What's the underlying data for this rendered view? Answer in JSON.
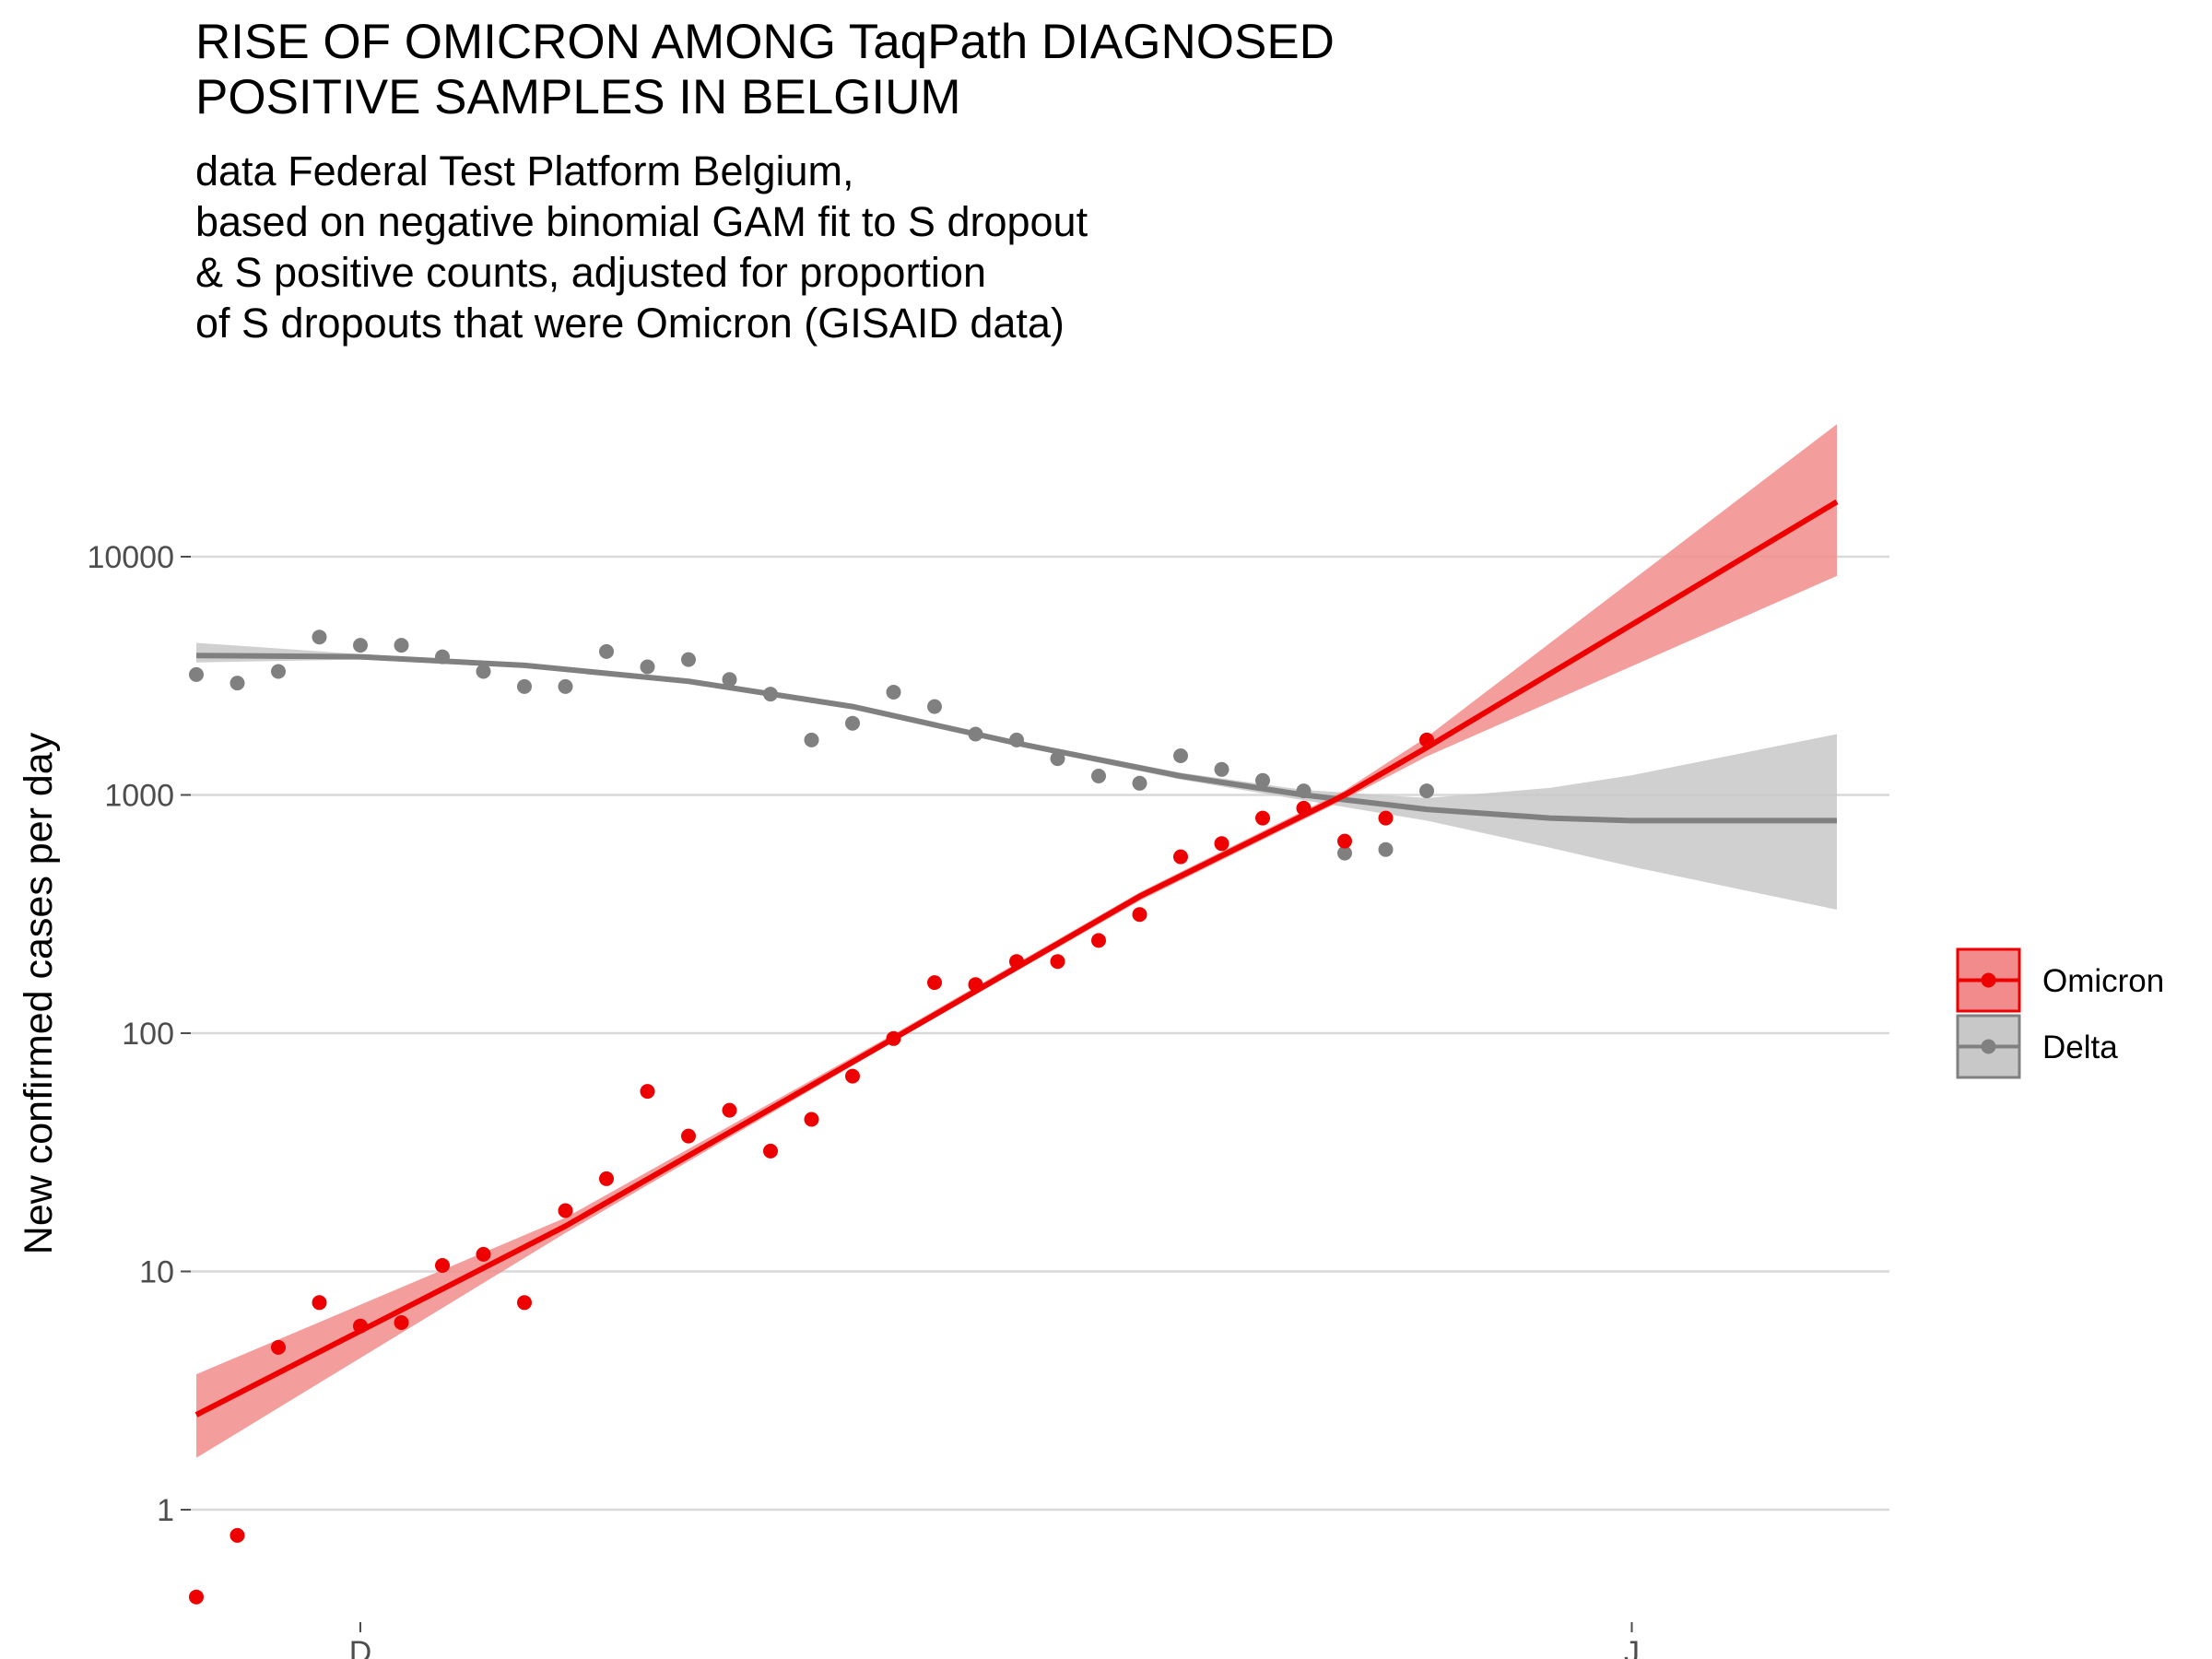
{
  "title_lines": [
    "RISE OF OMICRON AMONG TaqPath DIAGNOSED",
    "POSITIVE SAMPLES IN BELGIUM"
  ],
  "subtitle_lines": [
    "data Federal Test Platform Belgium,",
    "based on negative binomial GAM fit to S dropout",
    "& S positive counts, adjusted for proportion",
    "of S dropouts that were Omicron (GISAID data)"
  ],
  "chart_data": {
    "type": "scatter",
    "title": "RISE OF OMICRON AMONG TaqPath DIAGNOSED POSITIVE SAMPLES IN BELGIUM",
    "subtitle": "data Federal Test Platform Belgium, based on negative binomial GAM fit to S dropout & S positive counts, adjusted for proportion of S dropouts that were Omicron (GISAID data)",
    "xlabel": "",
    "ylabel": "New confirmed cases per day",
    "y_scale": "log10",
    "ylim": [
      0.4,
      40000
    ],
    "xlim": [
      "2021-11-26",
      "2022-01-06"
    ],
    "x_ticks": [
      {
        "date": "2021-12-01",
        "label": "D"
      },
      {
        "date": "2022-01-01",
        "label": "J"
      }
    ],
    "y_ticks": [
      {
        "value": 1,
        "label": "1"
      },
      {
        "value": 10,
        "label": "10"
      },
      {
        "value": 100,
        "label": "100"
      },
      {
        "value": 1000,
        "label": "1000"
      },
      {
        "value": 10000,
        "label": "10000"
      }
    ],
    "grid": "horizontal-major",
    "legend_position": "right",
    "series": [
      {
        "name": "Omicron",
        "color": "#ee0000",
        "ribbon_color": "#f28c8c",
        "points": [
          [
            "2021-11-27",
            0.43
          ],
          [
            "2021-11-28",
            0.78
          ],
          [
            "2021-11-29",
            4.8
          ],
          [
            "2021-11-30",
            7.4
          ],
          [
            "2021-12-01",
            5.9
          ],
          [
            "2021-12-02",
            6.1
          ],
          [
            "2021-12-03",
            10.6
          ],
          [
            "2021-12-04",
            11.8
          ],
          [
            "2021-12-05",
            7.4
          ],
          [
            "2021-12-06",
            18
          ],
          [
            "2021-12-07",
            24.5
          ],
          [
            "2021-12-08",
            57
          ],
          [
            "2021-12-09",
            37
          ],
          [
            "2021-12-10",
            47.5
          ],
          [
            "2021-12-11",
            32
          ],
          [
            "2021-12-12",
            43.5
          ],
          [
            "2021-12-13",
            66
          ],
          [
            "2021-12-14",
            95
          ],
          [
            "2021-12-15",
            163
          ],
          [
            "2021-12-16",
            160
          ],
          [
            "2021-12-17",
            200
          ],
          [
            "2021-12-18",
            200
          ],
          [
            "2021-12-19",
            245
          ],
          [
            "2021-12-20",
            315
          ],
          [
            "2021-12-21",
            550
          ],
          [
            "2021-12-22",
            625
          ],
          [
            "2021-12-23",
            800
          ],
          [
            "2021-12-24",
            880
          ],
          [
            "2021-12-25",
            640
          ],
          [
            "2021-12-26",
            800
          ],
          [
            "2021-12-27",
            1700
          ]
        ],
        "fit": [
          [
            "2021-11-27",
            2.5
          ],
          [
            "2021-12-06",
            15.5
          ],
          [
            "2021-12-14",
            95
          ],
          [
            "2021-12-20",
            375
          ],
          [
            "2021-12-25",
            1000
          ],
          [
            "2021-12-27",
            1580
          ],
          [
            "2022-01-06",
            17000
          ]
        ],
        "ribbon_lower": [
          [
            "2021-11-27",
            1.65
          ],
          [
            "2021-12-06",
            14.5
          ],
          [
            "2021-12-14",
            92
          ],
          [
            "2021-12-20",
            360
          ],
          [
            "2021-12-25",
            960
          ],
          [
            "2021-12-27",
            1450
          ],
          [
            "2022-01-06",
            8300
          ]
        ],
        "ribbon_upper": [
          [
            "2021-11-27",
            3.7
          ],
          [
            "2021-12-06",
            16.8
          ],
          [
            "2021-12-14",
            99
          ],
          [
            "2021-12-20",
            390
          ],
          [
            "2021-12-25",
            1045
          ],
          [
            "2021-12-27",
            1750
          ],
          [
            "2022-01-06",
            36000
          ]
        ]
      },
      {
        "name": "Delta",
        "color": "#808080",
        "ribbon_color": "#c8c8c8",
        "points": [
          [
            "2021-11-27",
            3200
          ],
          [
            "2021-11-28",
            2950
          ],
          [
            "2021-11-29",
            3300
          ],
          [
            "2021-11-30",
            4600
          ],
          [
            "2021-12-01",
            4250
          ],
          [
            "2021-12-02",
            4250
          ],
          [
            "2021-12-03",
            3800
          ],
          [
            "2021-12-04",
            3300
          ],
          [
            "2021-12-05",
            2850
          ],
          [
            "2021-12-06",
            2850
          ],
          [
            "2021-12-07",
            4000
          ],
          [
            "2021-12-08",
            3450
          ],
          [
            "2021-12-09",
            3700
          ],
          [
            "2021-12-10",
            3050
          ],
          [
            "2021-12-11",
            2650
          ],
          [
            "2021-12-12",
            1700
          ],
          [
            "2021-12-13",
            2000
          ],
          [
            "2021-12-14",
            2700
          ],
          [
            "2021-12-15",
            2350
          ],
          [
            "2021-12-16",
            1800
          ],
          [
            "2021-12-17",
            1700
          ],
          [
            "2021-12-18",
            1420
          ],
          [
            "2021-12-19",
            1200
          ],
          [
            "2021-12-20",
            1120
          ],
          [
            "2021-12-21",
            1460
          ],
          [
            "2021-12-22",
            1280
          ],
          [
            "2021-12-23",
            1150
          ],
          [
            "2021-12-24",
            1040
          ],
          [
            "2021-12-25",
            570
          ],
          [
            "2021-12-26",
            590
          ],
          [
            "2021-12-27",
            1040
          ]
        ],
        "fit": [
          [
            "2021-11-27",
            3850
          ],
          [
            "2021-12-01",
            3800
          ],
          [
            "2021-12-05",
            3500
          ],
          [
            "2021-12-09",
            3000
          ],
          [
            "2021-12-13",
            2350
          ],
          [
            "2021-12-17",
            1650
          ],
          [
            "2021-12-21",
            1200
          ],
          [
            "2021-12-24",
            1000
          ],
          [
            "2021-12-27",
            870
          ],
          [
            "2021-12-30",
            800
          ],
          [
            "2022-01-01",
            780
          ],
          [
            "2022-01-06",
            780
          ]
        ],
        "ribbon_lower": [
          [
            "2021-11-27",
            3600
          ],
          [
            "2021-12-01",
            3700
          ],
          [
            "2021-12-05",
            3420
          ],
          [
            "2021-12-09",
            2920
          ],
          [
            "2021-12-13",
            2290
          ],
          [
            "2021-12-17",
            1610
          ],
          [
            "2021-12-21",
            1160
          ],
          [
            "2021-12-24",
            950
          ],
          [
            "2021-12-27",
            780
          ],
          [
            "2021-12-30",
            600
          ],
          [
            "2022-01-01",
            500
          ],
          [
            "2022-01-06",
            330
          ]
        ],
        "ribbon_upper": [
          [
            "2021-11-27",
            4350
          ],
          [
            "2021-12-01",
            3900
          ],
          [
            "2021-12-05",
            3580
          ],
          [
            "2021-12-09",
            3080
          ],
          [
            "2021-12-13",
            2410
          ],
          [
            "2021-12-17",
            1690
          ],
          [
            "2021-12-21",
            1240
          ],
          [
            "2021-12-24",
            1050
          ],
          [
            "2021-12-27",
            970
          ],
          [
            "2021-12-30",
            1070
          ],
          [
            "2022-01-01",
            1210
          ],
          [
            "2022-01-06",
            1800
          ]
        ]
      }
    ]
  }
}
